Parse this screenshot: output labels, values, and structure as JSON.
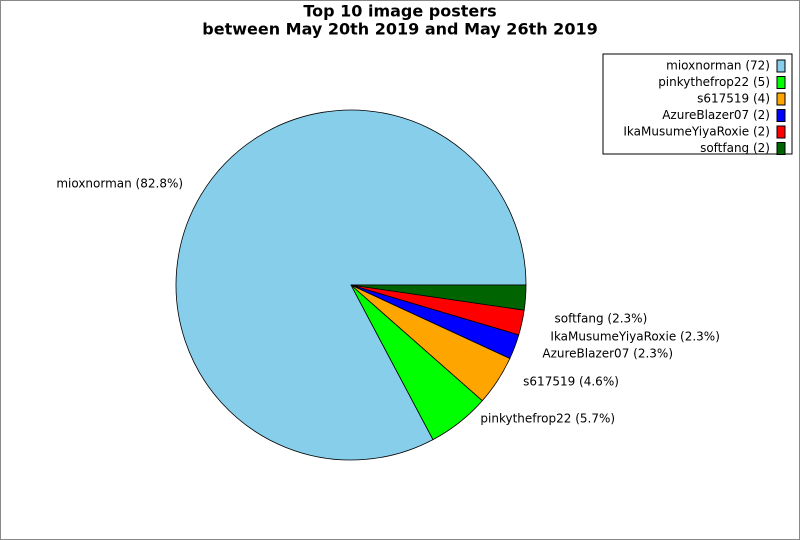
{
  "chart_data": {
    "type": "pie",
    "title": "Top 10 image posters",
    "subtitle": "between May 20th 2019 and May 26th 2019",
    "values": [
      72,
      5,
      4,
      2,
      2,
      2
    ],
    "value_labels": [
      "mioxnorman (82.8%)",
      "pinkythefrop22 (5.7%)",
      "s617519 (4.6%)",
      "AzureBlazer07 (2.3%)",
      "IkaMusumeYiyaRoxie (2.3%)",
      "softfang (2.3%)"
    ],
    "legend_labels": [
      "mioxnorman (72)",
      "pinkythefrop22 (5)",
      "s617519 (4)",
      "AzureBlazer07 (2)",
      "IkaMusumeYiyaRoxie (2)",
      "softfang (2)"
    ],
    "colors": [
      "#87ceeb",
      "#00ff00",
      "#ffa500",
      "#0000ff",
      "#ff0000",
      "#006400"
    ],
    "legend": "upper right"
  }
}
